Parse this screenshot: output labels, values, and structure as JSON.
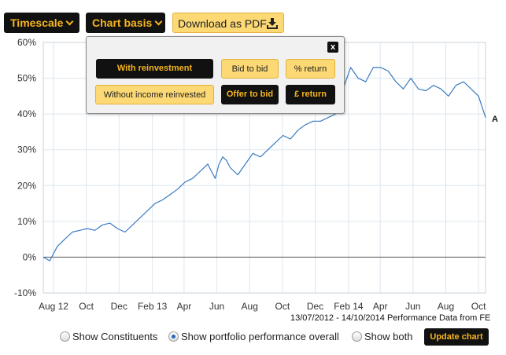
{
  "toolbar": {
    "timescale_label": "Timescale",
    "chart_basis_label": "Chart basis",
    "download_label": "Download as PDF"
  },
  "chart_basis_menu": {
    "with_reinvestment": "With reinvestment",
    "without_income_reinvested": "Without income reinvested",
    "bid_to_bid": "Bid to bid",
    "offer_to_bid": "Offer to bid",
    "percent_return": "% return",
    "pound_return": "£ return",
    "close": "x"
  },
  "chart_data": {
    "type": "line",
    "title": "",
    "xlabel": "",
    "ylabel": "",
    "ylim": [
      -10,
      60
    ],
    "y_ticks": [
      -10,
      0,
      10,
      20,
      30,
      40,
      50,
      60
    ],
    "y_tick_labels": [
      "-10%",
      "0%",
      "10%",
      "20%",
      "30%",
      "40%",
      "50%",
      "60%"
    ],
    "x_tick_labels": [
      "Aug 12",
      "Oct",
      "Dec",
      "Feb 13",
      "Apr",
      "Jun",
      "Aug",
      "Oct",
      "Dec",
      "Feb 14",
      "Apr",
      "Jun",
      "Aug",
      "Oct"
    ],
    "x_tick_dates": [
      "2012-08",
      "2012-10",
      "2012-12",
      "2013-02",
      "2013-04",
      "2013-06",
      "2013-08",
      "2013-10",
      "2013-12",
      "2014-02",
      "2014-04",
      "2014-06",
      "2014-08",
      "2014-10"
    ],
    "grid": true,
    "series": [
      {
        "name": "A",
        "color": "#3a7bc0",
        "x": [
          "2012-07-13",
          "2012-07-25",
          "2012-08-08",
          "2012-08-22",
          "2012-09-05",
          "2012-09-19",
          "2012-10-03",
          "2012-10-17",
          "2012-10-31",
          "2012-11-14",
          "2012-11-28",
          "2012-12-12",
          "2012-12-26",
          "2013-01-09",
          "2013-01-23",
          "2013-02-06",
          "2013-02-20",
          "2013-03-06",
          "2013-03-20",
          "2013-04-03",
          "2013-04-17",
          "2013-05-01",
          "2013-05-15",
          "2013-05-22",
          "2013-05-29",
          "2013-06-05",
          "2013-06-12",
          "2013-06-19",
          "2013-06-26",
          "2013-07-10",
          "2013-07-24",
          "2013-08-07",
          "2013-08-21",
          "2013-09-04",
          "2013-09-18",
          "2013-10-02",
          "2013-10-16",
          "2013-10-30",
          "2013-11-13",
          "2013-11-27",
          "2013-12-11",
          "2013-12-25",
          "2014-01-08",
          "2014-01-22",
          "2014-02-05",
          "2014-02-19",
          "2014-03-05",
          "2014-03-19",
          "2014-04-02",
          "2014-04-16",
          "2014-04-30",
          "2014-05-14",
          "2014-05-28",
          "2014-06-11",
          "2014-06-25",
          "2014-07-09",
          "2014-07-23",
          "2014-08-06",
          "2014-08-20",
          "2014-09-03",
          "2014-09-17",
          "2014-10-01",
          "2014-10-14"
        ],
        "values": [
          0,
          -1,
          3,
          5,
          7,
          7.5,
          8,
          7.5,
          9,
          9.5,
          8,
          7,
          9,
          11,
          13,
          15,
          16,
          17.5,
          19,
          21,
          22,
          24,
          26,
          24,
          22,
          26,
          28,
          27,
          25,
          23,
          26,
          29,
          28,
          30,
          32,
          34,
          33,
          35.5,
          37,
          38,
          38,
          39,
          40,
          47,
          53,
          50,
          49,
          53,
          53,
          52,
          49,
          47,
          50,
          47,
          46.5,
          48,
          47,
          45,
          48,
          49,
          47,
          45,
          39
        ]
      }
    ]
  },
  "series_end_label": "A",
  "range_note": "13/07/2012 - 14/10/2014 Performance Data from FE",
  "options": {
    "show_constituents": "Show Constituents",
    "show_portfolio": "Show portfolio performance overall",
    "show_both": "Show both",
    "selected": "show_portfolio",
    "update_label": "Update chart"
  }
}
